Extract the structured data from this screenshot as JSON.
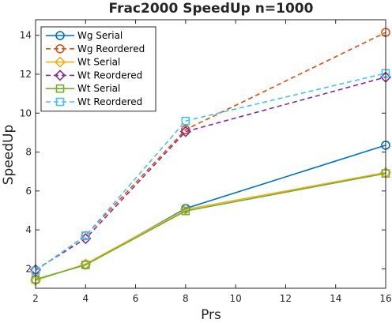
{
  "chart_data": {
    "type": "line",
    "title": "Frac2000 SpeedUp n=1000",
    "xlabel": "Prs",
    "ylabel": "SpeedUp",
    "x": [
      2,
      4,
      8,
      16
    ],
    "xlim": [
      2,
      16
    ],
    "ylim": [
      1,
      14.8
    ],
    "xticks": [
      2,
      4,
      6,
      8,
      10,
      12,
      14,
      16
    ],
    "yticks": [
      2,
      4,
      6,
      8,
      10,
      12,
      14
    ],
    "grid": false,
    "legend_position": "top-left",
    "series": [
      {
        "name": "Wg Serial",
        "values": [
          1.45,
          2.2,
          5.1,
          8.35
        ],
        "color": "#0072BD",
        "dash": "solid",
        "marker": "circle"
      },
      {
        "name": "Wg Reordered",
        "values": [
          1.9,
          3.7,
          9.15,
          14.15
        ],
        "color": "#D95319",
        "dash": "dashed",
        "marker": "circle"
      },
      {
        "name": "Wt Serial",
        "values": [
          1.4,
          2.25,
          5.05,
          6.95
        ],
        "color": "#EDB120",
        "dash": "solid",
        "marker": "diamond"
      },
      {
        "name": "Wt Reordered",
        "values": [
          1.95,
          3.55,
          9.05,
          11.85
        ],
        "color": "#7E2F8E",
        "dash": "dashed",
        "marker": "diamond"
      },
      {
        "name": "Wt Serial",
        "values": [
          1.45,
          2.2,
          4.97,
          6.9
        ],
        "color": "#77AC30",
        "dash": "solid",
        "marker": "square"
      },
      {
        "name": "Wt Reordered",
        "values": [
          1.9,
          3.7,
          9.6,
          12.05
        ],
        "color": "#4DBEEE",
        "dash": "dashed",
        "marker": "square"
      }
    ]
  }
}
